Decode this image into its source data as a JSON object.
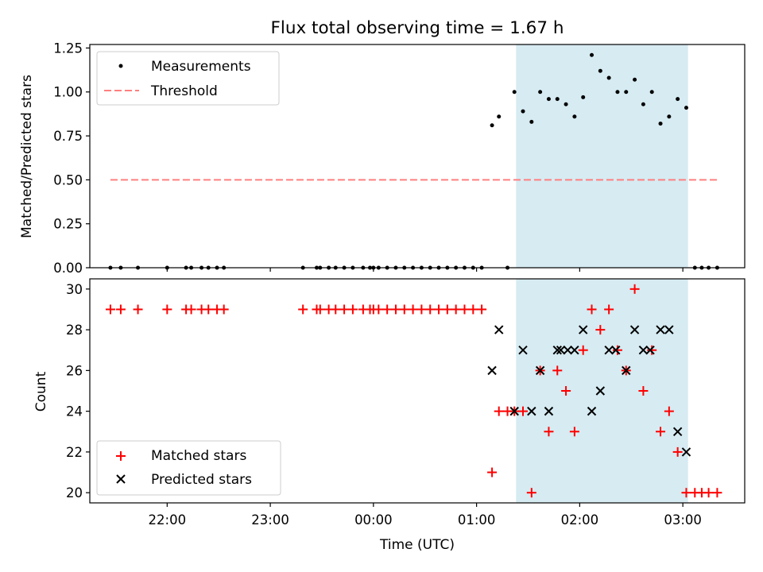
{
  "chart_data": [
    {
      "type": "scatter",
      "title": "Flux total observing time = 1.67 h",
      "ylabel": "Matched/Predicted stars",
      "xlabel": "",
      "ylim": [
        0,
        1.27
      ],
      "yticks": [
        "0.00",
        "0.25",
        "0.50",
        "0.75",
        "1.00",
        "1.25"
      ],
      "grid": false,
      "legend_position": "top-left",
      "shaded_interval": {
        "from": "01:23",
        "to": "03:03",
        "color": "#add8e6"
      },
      "series": [
        {
          "name": "Measurements",
          "marker": "dot",
          "color": "#000000",
          "points": [
            [
              "21:27",
              0
            ],
            [
              "21:33",
              0
            ],
            [
              "21:43",
              0
            ],
            [
              "22:00",
              0
            ],
            [
              "22:11",
              0
            ],
            [
              "22:14",
              0
            ],
            [
              "22:20",
              0
            ],
            [
              "22:24",
              0
            ],
            [
              "22:29",
              0
            ],
            [
              "22:33",
              0
            ],
            [
              "23:19",
              0
            ],
            [
              "23:27",
              0
            ],
            [
              "23:29",
              0
            ],
            [
              "23:34",
              0
            ],
            [
              "23:38",
              0
            ],
            [
              "23:43",
              0
            ],
            [
              "23:48",
              0
            ],
            [
              "23:54",
              0
            ],
            [
              "23:58",
              0
            ],
            [
              "00:00",
              0
            ],
            [
              "00:03",
              0
            ],
            [
              "00:08",
              0
            ],
            [
              "00:13",
              0
            ],
            [
              "00:18",
              0
            ],
            [
              "00:23",
              0
            ],
            [
              "00:28",
              0
            ],
            [
              "00:33",
              0
            ],
            [
              "00:38",
              0
            ],
            [
              "00:43",
              0
            ],
            [
              "00:48",
              0
            ],
            [
              "00:53",
              0
            ],
            [
              "00:58",
              0
            ],
            [
              "01:03",
              0
            ],
            [
              "01:09",
              0.81
            ],
            [
              "01:13",
              0.86
            ],
            [
              "01:18",
              0
            ],
            [
              "01:22",
              1.0
            ],
            [
              "01:27",
              0.89
            ],
            [
              "01:32",
              0.83
            ],
            [
              "01:37",
              1.0
            ],
            [
              "01:42",
              0.96
            ],
            [
              "01:47",
              0.96
            ],
            [
              "01:52",
              0.93
            ],
            [
              "01:57",
              0.86
            ],
            [
              "02:02",
              0.97
            ],
            [
              "02:07",
              1.21
            ],
            [
              "02:12",
              1.12
            ],
            [
              "02:17",
              1.08
            ],
            [
              "02:22",
              1.0
            ],
            [
              "02:27",
              1.0
            ],
            [
              "02:32",
              1.07
            ],
            [
              "02:37",
              0.93
            ],
            [
              "02:42",
              1.0
            ],
            [
              "02:47",
              0.82
            ],
            [
              "02:52",
              0.86
            ],
            [
              "02:57",
              0.96
            ],
            [
              "03:02",
              0.91
            ],
            [
              "03:07",
              0
            ],
            [
              "03:11",
              0
            ],
            [
              "03:15",
              0
            ],
            [
              "03:20",
              0
            ]
          ]
        },
        {
          "name": "Threshold",
          "marker": "dashed-line",
          "color": "#ff7f7f",
          "points": [
            [
              "21:27",
              0.5
            ],
            [
              "03:20",
              0.5
            ]
          ]
        }
      ]
    },
    {
      "type": "scatter",
      "title": "",
      "ylabel": "Count",
      "xlabel": "Time (UTC)",
      "ylim": [
        19.5,
        30.5
      ],
      "yticks": [
        "20",
        "22",
        "24",
        "26",
        "28",
        "30"
      ],
      "xticks": [
        "22:00",
        "23:00",
        "00:00",
        "01:00",
        "02:00",
        "03:00"
      ],
      "grid": false,
      "legend_position": "bottom-left",
      "shaded_interval": {
        "from": "01:23",
        "to": "03:03",
        "color": "#add8e6"
      },
      "series": [
        {
          "name": "Matched stars",
          "marker": "plus",
          "color": "#ff0000",
          "points": [
            [
              "21:27",
              29
            ],
            [
              "21:33",
              29
            ],
            [
              "21:43",
              29
            ],
            [
              "22:00",
              29
            ],
            [
              "22:11",
              29
            ],
            [
              "22:14",
              29
            ],
            [
              "22:20",
              29
            ],
            [
              "22:24",
              29
            ],
            [
              "22:29",
              29
            ],
            [
              "22:33",
              29
            ],
            [
              "23:19",
              29
            ],
            [
              "23:27",
              29
            ],
            [
              "23:29",
              29
            ],
            [
              "23:34",
              29
            ],
            [
              "23:38",
              29
            ],
            [
              "23:43",
              29
            ],
            [
              "23:48",
              29
            ],
            [
              "23:54",
              29
            ],
            [
              "23:58",
              29
            ],
            [
              "00:00",
              29
            ],
            [
              "00:03",
              29
            ],
            [
              "00:08",
              29
            ],
            [
              "00:13",
              29
            ],
            [
              "00:18",
              29
            ],
            [
              "00:23",
              29
            ],
            [
              "00:28",
              29
            ],
            [
              "00:33",
              29
            ],
            [
              "00:38",
              29
            ],
            [
              "00:43",
              29
            ],
            [
              "00:48",
              29
            ],
            [
              "00:53",
              29
            ],
            [
              "00:58",
              29
            ],
            [
              "01:03",
              29
            ],
            [
              "01:09",
              21
            ],
            [
              "01:13",
              24
            ],
            [
              "01:18",
              24
            ],
            [
              "01:22",
              24
            ],
            [
              "01:27",
              24
            ],
            [
              "01:32",
              20
            ],
            [
              "01:37",
              26
            ],
            [
              "01:42",
              23
            ],
            [
              "01:47",
              26
            ],
            [
              "01:52",
              25
            ],
            [
              "01:57",
              23
            ],
            [
              "02:02",
              27
            ],
            [
              "02:07",
              29
            ],
            [
              "02:12",
              28
            ],
            [
              "02:17",
              29
            ],
            [
              "02:22",
              27
            ],
            [
              "02:27",
              26
            ],
            [
              "02:32",
              30
            ],
            [
              "02:37",
              25
            ],
            [
              "02:42",
              27
            ],
            [
              "02:47",
              23
            ],
            [
              "02:52",
              24
            ],
            [
              "02:57",
              22
            ],
            [
              "03:02",
              20
            ],
            [
              "03:07",
              20
            ],
            [
              "03:11",
              20
            ],
            [
              "03:15",
              20
            ],
            [
              "03:20",
              20
            ]
          ]
        },
        {
          "name": "Predicted stars",
          "marker": "x",
          "color": "#000000",
          "points": [
            [
              "01:09",
              26
            ],
            [
              "01:13",
              28
            ],
            [
              "01:22",
              24
            ],
            [
              "01:27",
              27
            ],
            [
              "01:32",
              24
            ],
            [
              "01:37",
              26
            ],
            [
              "01:42",
              24
            ],
            [
              "01:47",
              27
            ],
            [
              "01:49",
              27
            ],
            [
              "01:53",
              27
            ],
            [
              "01:57",
              27
            ],
            [
              "02:02",
              28
            ],
            [
              "02:07",
              24
            ],
            [
              "02:12",
              25
            ],
            [
              "02:17",
              27
            ],
            [
              "02:21",
              27
            ],
            [
              "02:27",
              26
            ],
            [
              "02:32",
              28
            ],
            [
              "02:37",
              27
            ],
            [
              "02:41",
              27
            ],
            [
              "02:47",
              28
            ],
            [
              "02:52",
              28
            ],
            [
              "02:57",
              23
            ],
            [
              "03:02",
              22
            ]
          ]
        }
      ]
    }
  ]
}
